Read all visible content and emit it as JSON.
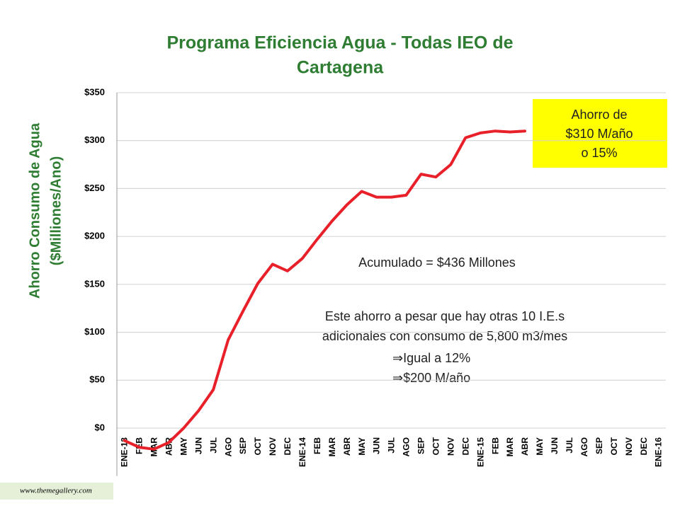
{
  "chart_data": {
    "type": "line",
    "title": [
      "Programa Eficiencia Agua - Todas IEO de",
      "Cartagena"
    ],
    "y_label": [
      "Ahorro Consumo de Agua",
      "($Milliones/Ano)"
    ],
    "categories": [
      "ENE-13",
      "FEB",
      "MAR",
      "ABR",
      "MAY",
      "JUN",
      "JUL",
      "AGO",
      "SEP",
      "OCT",
      "NOV",
      "DEC",
      "ENE-14",
      "FEB",
      "MAR",
      "ABR",
      "MAY",
      "JUN",
      "JUL",
      "AGO",
      "SEP",
      "OCT",
      "NOV",
      "DEC",
      "ENE-15",
      "FEB",
      "MAR",
      "ABR",
      "MAY",
      "JUN",
      "JUL",
      "AGO",
      "SEP",
      "OCT",
      "NOV",
      "DEC",
      "ENE-16"
    ],
    "series": [
      {
        "color": "#e8202a",
        "values": [
          -13,
          -20,
          -22,
          -15,
          0,
          18,
          40,
          92,
          122,
          151,
          171,
          164,
          177,
          197,
          216,
          233,
          247,
          241,
          241,
          243,
          265,
          262,
          275,
          303,
          308,
          310,
          309,
          310,
          null,
          null,
          null,
          null,
          null,
          null,
          null,
          null,
          null
        ]
      }
    ],
    "ylim": [
      -50,
      350
    ],
    "yticks": [
      {
        "value": 0,
        "label": "$0"
      },
      {
        "value": 50,
        "label": "$50"
      },
      {
        "value": 100,
        "label": "$100"
      },
      {
        "value": 150,
        "label": "$150"
      },
      {
        "value": 200,
        "label": "$200"
      },
      {
        "value": 250,
        "label": "$250"
      },
      {
        "value": 300,
        "label": "$300"
      },
      {
        "value": 350,
        "label": "$350"
      }
    ],
    "grid": true,
    "annotations": {
      "box": [
        "Ahorro de",
        "$310 M/año",
        "o 15%"
      ],
      "accumulated": "Acumulado = $436 Millones",
      "note": [
        "Este ahorro a pesar que hay otras 10 I.E.s",
        "adicionales con consumo de 5,800 m3/mes",
        "⇒Igual a 12%",
        "⇒$200 M/año"
      ]
    }
  },
  "footer": "www.themegallery.com"
}
